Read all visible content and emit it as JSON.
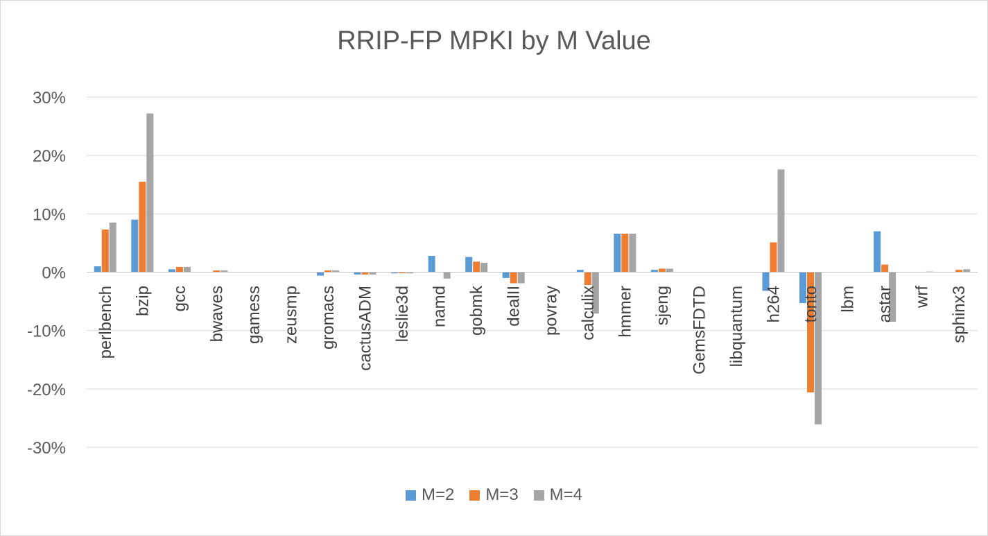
{
  "chart_data": {
    "type": "bar",
    "title": "RRIP-FP MPKI by M Value",
    "xlabel": "",
    "ylabel": "",
    "ylim": [
      -0.3,
      0.3
    ],
    "yticks": [
      0.3,
      0.2,
      0.1,
      0.0,
      -0.1,
      -0.2,
      -0.3
    ],
    "ytick_labels": [
      "30%",
      "20%",
      "10%",
      "0%",
      "-10%",
      "-20%",
      "-30%"
    ],
    "grid": true,
    "legend_position": "bottom",
    "categories": [
      "perlbench",
      "bzip",
      "gcc",
      "bwaves",
      "gamess",
      "zeusmp",
      "gromacs",
      "cactusADM",
      "leslie3d",
      "namd",
      "gobmk",
      "dealII",
      "povray",
      "calculix",
      "hmmer",
      "sjeng",
      "GemsFDTD",
      "libquantum",
      "h264",
      "tonto",
      "lbm",
      "astar",
      "wrf",
      "sphinx3"
    ],
    "series": [
      {
        "name": "M=2",
        "color": "#5b9bd5",
        "values": [
          0.01,
          0.09,
          0.005,
          0.0,
          0.0,
          0.0,
          -0.006,
          -0.004,
          -0.002,
          0.028,
          0.026,
          -0.01,
          0.0,
          0.004,
          0.066,
          0.004,
          0.0,
          0.0,
          -0.032,
          -0.053,
          0.0,
          0.07,
          0.0,
          0.0
        ]
      },
      {
        "name": "M=3",
        "color": "#ed7d31",
        "values": [
          0.073,
          0.155,
          0.009,
          0.003,
          0.0,
          0.0,
          0.003,
          -0.004,
          -0.002,
          0.0,
          0.018,
          -0.019,
          0.0,
          -0.022,
          0.066,
          0.006,
          0.0,
          0.0,
          0.051,
          -0.206,
          0.0,
          0.013,
          0.0,
          0.004
        ]
      },
      {
        "name": "M=4",
        "color": "#a5a5a5",
        "values": [
          0.085,
          0.272,
          0.009,
          0.003,
          0.0,
          0.0,
          0.003,
          -0.004,
          -0.002,
          -0.011,
          0.016,
          -0.019,
          0.0,
          -0.071,
          0.066,
          0.006,
          0.0,
          0.0,
          0.176,
          -0.261,
          0.0,
          -0.085,
          0.001,
          0.005
        ]
      }
    ]
  }
}
